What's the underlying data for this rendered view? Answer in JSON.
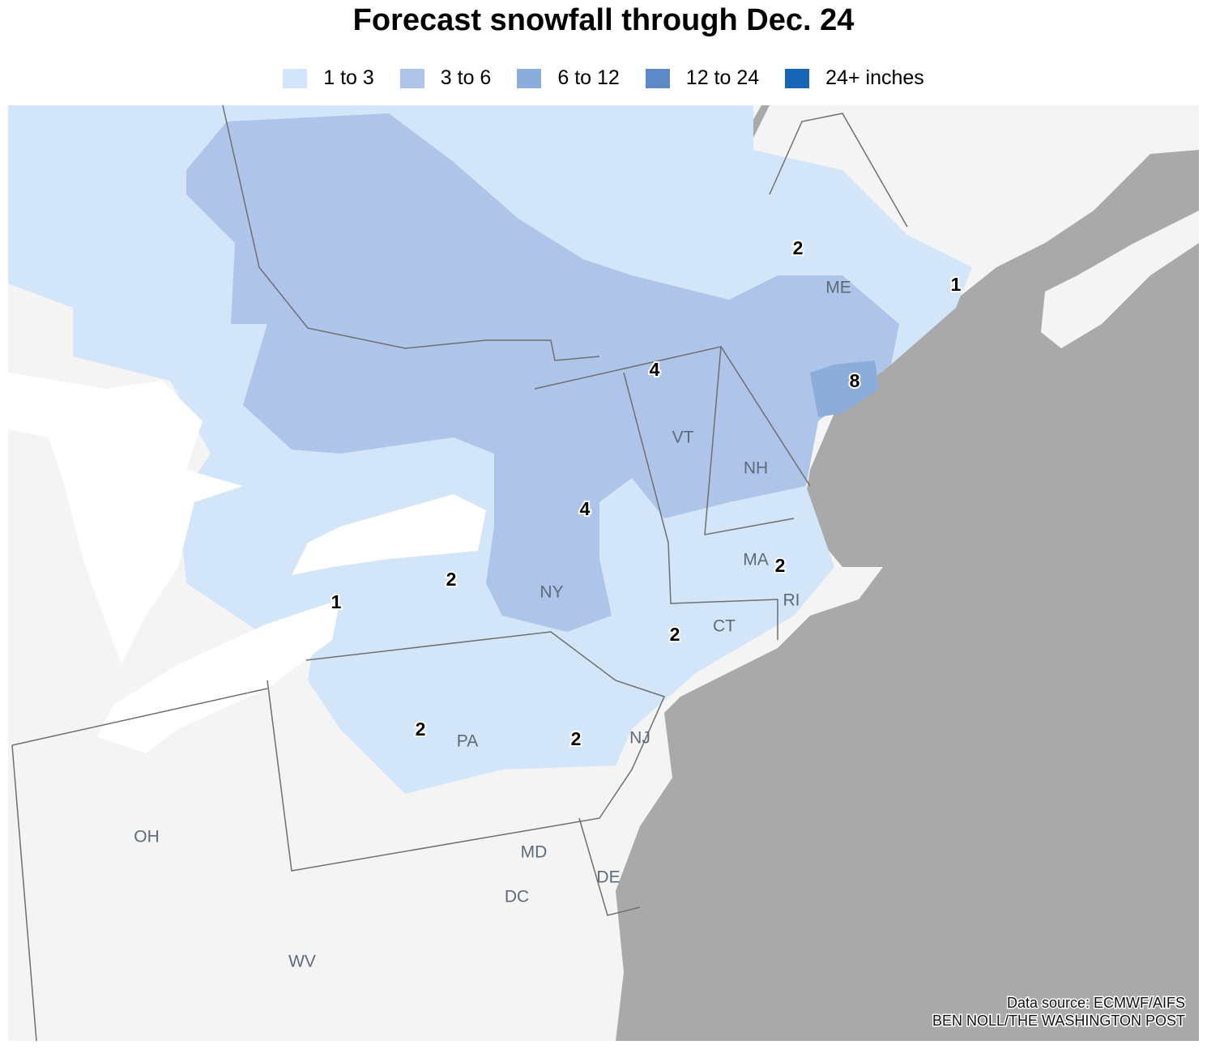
{
  "title": "Forecast snowfall through Dec. 24",
  "legend": [
    {
      "label": "1 to 3",
      "color": "#d3e5f8"
    },
    {
      "label": "3 to 6",
      "color": "#aec4e8"
    },
    {
      "label": "6 to 12",
      "color": "#8cadd9"
    },
    {
      "label": "12 to 24",
      "color": "#5e89c9"
    },
    {
      "label": "24+ inches",
      "color": "#1665b7"
    }
  ],
  "state_labels": [
    "ME",
    "VT",
    "NH",
    "MA",
    "NY",
    "RI",
    "CT",
    "NJ",
    "PA",
    "OH",
    "MD",
    "DE",
    "DC",
    "WV"
  ],
  "snow_labels": [
    2,
    1,
    4,
    8,
    4,
    2,
    2,
    1,
    2,
    2,
    2
  ],
  "source": "Data source: ECMWF/AIFS",
  "credit": "BEN NOLL/THE WASHINGTON POST"
}
